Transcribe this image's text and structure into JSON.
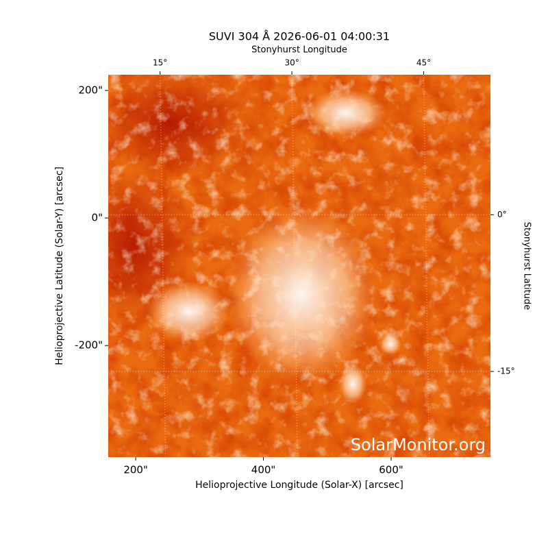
{
  "chart_data": {
    "type": "image",
    "title": "SUVI 304 Å 2026-06-01 04:00:31",
    "x_label": "Helioprojective Longitude (Solar-X) [arcsec]",
    "y_label": "Helioprojective Latitude (Solar-Y) [arcsec]",
    "x2_label": "Stonyhurst Longitude",
    "y2_label": "Stonyhurst Latitude",
    "watermark": "SolarMonitor.org",
    "xlim": [
      157,
      755.5
    ],
    "ylim": [
      -375,
      224.7
    ],
    "xticks": [
      {
        "value": 200,
        "label": "200\""
      },
      {
        "value": 400,
        "label": "400\""
      },
      {
        "value": 600,
        "label": "600\""
      }
    ],
    "yticks": [
      {
        "value": 200,
        "label": "200\""
      },
      {
        "value": 0,
        "label": "0\""
      },
      {
        "value": -200,
        "label": "-200\""
      }
    ],
    "x2lim": [
      9.1,
      52.6
    ],
    "x2ticks": [
      {
        "value": 15,
        "label": "15°"
      },
      {
        "value": 30,
        "label": "30°"
      },
      {
        "value": 45,
        "label": "45°"
      }
    ],
    "y2lim": [
      -23.2,
      13.4
    ],
    "y2ticks": [
      {
        "value": 0,
        "label": "0°"
      },
      {
        "value": -15,
        "label": "-15°"
      }
    ],
    "grid": true
  }
}
